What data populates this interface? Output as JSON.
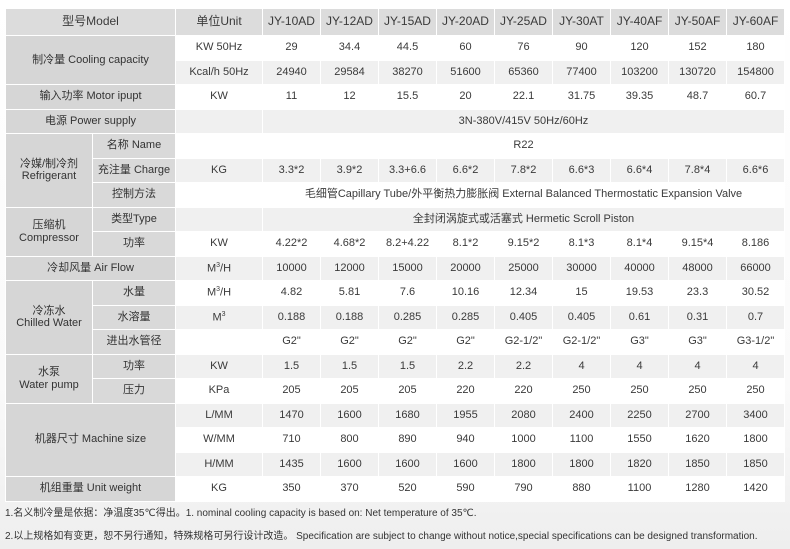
{
  "header": {
    "model_label": "型号Model",
    "unit_label": "单位Unit",
    "models": [
      "JY-10AD",
      "JY-12AD",
      "JY-15AD",
      "JY-20AD",
      "JY-25AD",
      "JY-30AT",
      "JY-40AF",
      "JY-50AF",
      "JY-60AF"
    ]
  },
  "rows": [
    {
      "group": "制冷量 Cooling capacity",
      "unit": "KW 50Hz",
      "values": [
        "29",
        "34.4",
        "44.5",
        "60",
        "76",
        "90",
        "120",
        "152",
        "180"
      ]
    },
    {
      "group": "制冷量 Cooling capacity",
      "unit": "Kcal/h 50Hz",
      "values": [
        "24940",
        "29584",
        "38270",
        "51600",
        "65360",
        "77400",
        "103200",
        "130720",
        "154800"
      ]
    },
    {
      "group": "输入功率 Motor ipupt",
      "unit": "KW",
      "values": [
        "11",
        "12",
        "15.5",
        "20",
        "22.1",
        "31.75",
        "39.35",
        "48.7",
        "60.7"
      ]
    },
    {
      "group": "电源 Power supply",
      "unit": "",
      "span_value": "3N-380V/415V 50Hz/60Hz"
    },
    {
      "group": "冷媒/制冷剂 Refrigerant",
      "sub": "名称 Name",
      "unit": "",
      "span_value": "R22"
    },
    {
      "group": "冷媒/制冷剂 Refrigerant",
      "sub": "充注量 Charge",
      "unit": "KG",
      "values": [
        "3.3*2",
        "3.9*2",
        "3.3+6.6",
        "6.6*2",
        "7.8*2",
        "6.6*3",
        "6.6*4",
        "7.8*4",
        "6.6*6"
      ]
    },
    {
      "group": "冷媒/制冷剂 Refrigerant",
      "sub": "控制方法",
      "unit": "",
      "span_value": "毛细管Capillary Tube/外平衡热力膨胀阀 External Balanced Thermostatic Expansion Valve"
    },
    {
      "group": "压缩机 Compressor",
      "sub": "类型Type",
      "unit": "",
      "span_value": "全封闭涡旋式或活塞式 Hermetic Scroll Piston"
    },
    {
      "group": "压缩机 Compressor",
      "sub": "功率",
      "unit": "KW",
      "values": [
        "4.22*2",
        "4.68*2",
        "8.2+4.22",
        "8.1*2",
        "9.15*2",
        "8.1*3",
        "8.1*4",
        "9.15*4",
        "8.186"
      ]
    },
    {
      "group": "冷却风量 Air Flow",
      "unit": "M³/H",
      "values": [
        "10000",
        "12000",
        "15000",
        "20000",
        "25000",
        "30000",
        "40000",
        "48000",
        "66000"
      ]
    },
    {
      "group": "冷冻水 Chilled Water",
      "sub": "水量",
      "unit": "M³/H",
      "values": [
        "4.82",
        "5.81",
        "7.6",
        "10.16",
        "12.34",
        "15",
        "19.53",
        "23.3",
        "30.52"
      ]
    },
    {
      "group": "冷冻水 Chilled Water",
      "sub": "水溶量",
      "unit": "M³",
      "values": [
        "0.188",
        "0.188",
        "0.285",
        "0.285",
        "0.405",
        "0.405",
        "0.61",
        "0.31",
        "0.7"
      ]
    },
    {
      "group": "冷冻水 Chilled Water",
      "sub": "进出水管径",
      "unit": "",
      "values": [
        "G2\"",
        "G2\"",
        "G2\"",
        "G2\"",
        "G2-1/2\"",
        "G2-1/2\"",
        "G3\"",
        "G3\"",
        "G3-1/2\""
      ]
    },
    {
      "group": "水泵 Water pump",
      "sub": "功率",
      "unit": "KW",
      "values": [
        "1.5",
        "1.5",
        "1.5",
        "2.2",
        "2.2",
        "4",
        "4",
        "4",
        "4"
      ]
    },
    {
      "group": "水泵 Water pump",
      "sub": "压力",
      "unit": "KPa",
      "values": [
        "205",
        "205",
        "205",
        "220",
        "220",
        "250",
        "250",
        "250",
        "250"
      ]
    },
    {
      "group": "机器尺寸 Machine size",
      "unit": "L/MM",
      "values": [
        "1470",
        "1600",
        "1680",
        "1955",
        "2080",
        "2400",
        "2250",
        "2700",
        "3400"
      ]
    },
    {
      "group": "机器尺寸 Machine size",
      "unit": "W/MM",
      "values": [
        "710",
        "800",
        "890",
        "940",
        "1000",
        "1100",
        "1550",
        "1620",
        "1800"
      ]
    },
    {
      "group": "机器尺寸 Machine size",
      "unit": "H/MM",
      "values": [
        "1435",
        "1600",
        "1600",
        "1600",
        "1800",
        "1800",
        "1820",
        "1850",
        "1850"
      ]
    },
    {
      "group": "机组重量 Unit weight",
      "unit": "KG",
      "values": [
        "350",
        "370",
        "520",
        "590",
        "790",
        "880",
        "1100",
        "1280",
        "1420"
      ]
    }
  ],
  "notes": [
    "1.名义制冷量是依据：净温度35℃得出。1. nominal cooling capacity is based on: Net temperature of 35℃.",
    "2.以上规格如有变更，恕不另行通知，特殊规格可另行设计改造。 Specification are subject to change without notice,special specifications can be designed transformation."
  ]
}
